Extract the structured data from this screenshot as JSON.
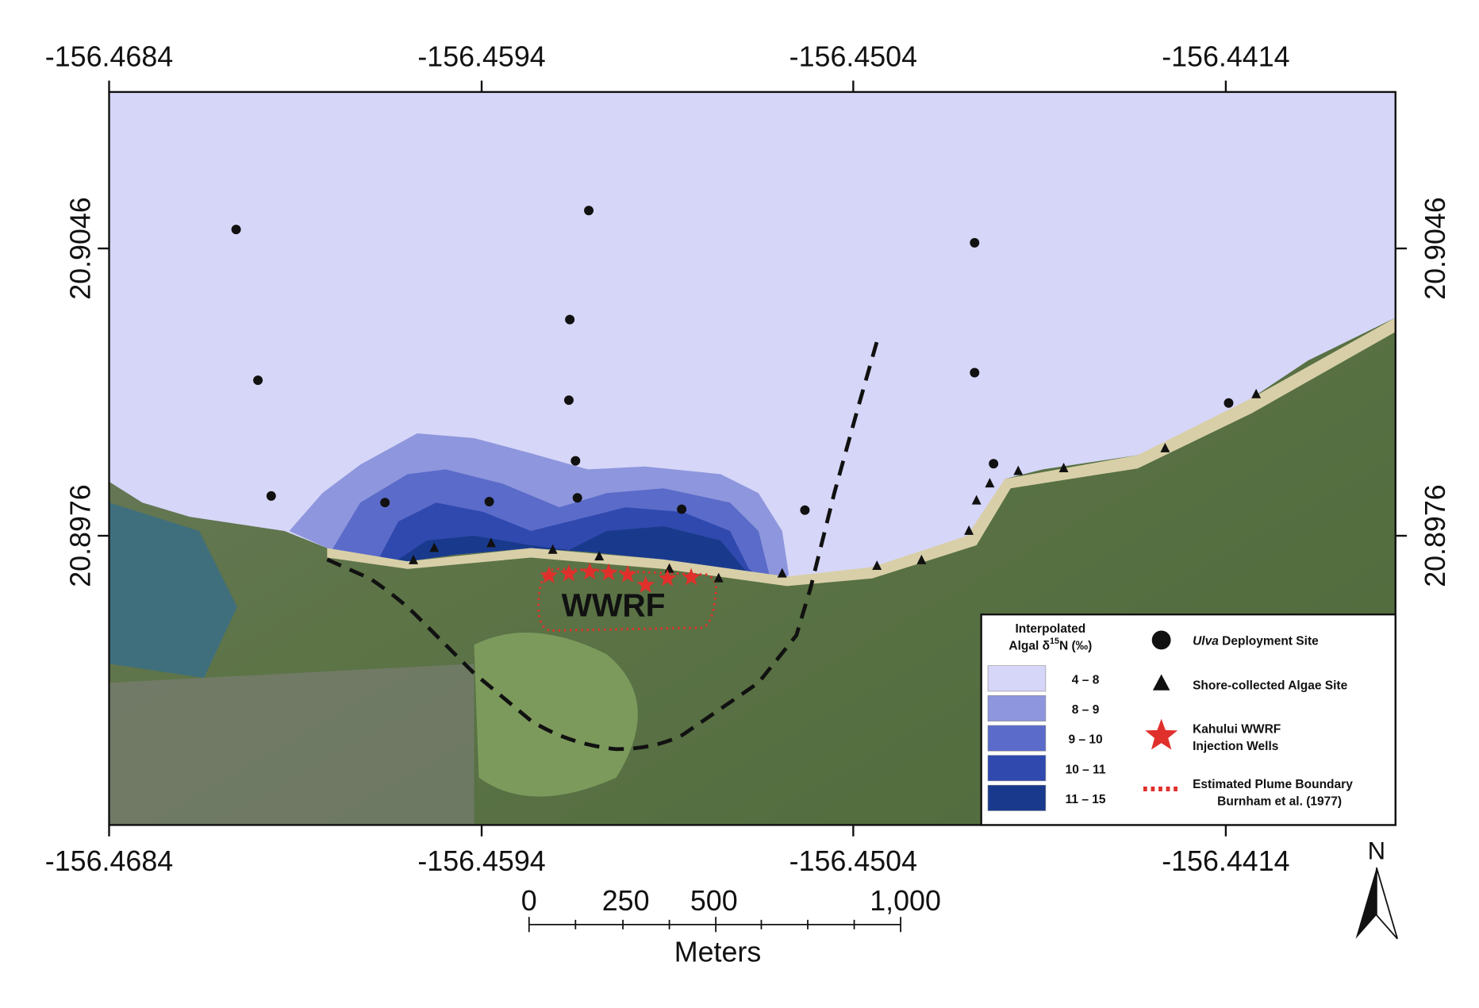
{
  "axes": {
    "top": [
      "-156.4684",
      "-156.4594",
      "-156.4504",
      "-156.4414"
    ],
    "bottom": [
      "-156.4684",
      "-156.4594",
      "-156.4504",
      "-156.4414"
    ],
    "left": [
      "20.9046",
      "20.8976"
    ],
    "right": [
      "20.9046",
      "20.8976"
    ]
  },
  "map_label": "WWRF",
  "legend": {
    "title_line1": "Interpolated",
    "title_line2": "Algal δ",
    "title_sup": "15",
    "title_rest": "N (‰)",
    "classes": [
      {
        "label": "4 – 8",
        "color": "#d6d6f8"
      },
      {
        "label": "8 – 9",
        "color": "#8e96dd"
      },
      {
        "label": "9 – 10",
        "color": "#5b6bc9"
      },
      {
        "label": "10 – 11",
        "color": "#3049ae"
      },
      {
        "label": "11 – 15",
        "color": "#193a8c"
      }
    ],
    "symbols": [
      {
        "italic": "Ulva",
        "text": " Deployment Site"
      },
      {
        "text": "Shore-collected Algae Site"
      },
      {
        "line1": "Kahului WWRF",
        "line2": "Injection Wells"
      },
      {
        "line1": "Estimated Plume Boundary",
        "line2": "Burnham et al. (1977)"
      }
    ]
  },
  "scale_bar": {
    "ticks": [
      "0",
      "250",
      "500",
      "1,000"
    ],
    "unit": "Meters"
  },
  "north": "N"
}
